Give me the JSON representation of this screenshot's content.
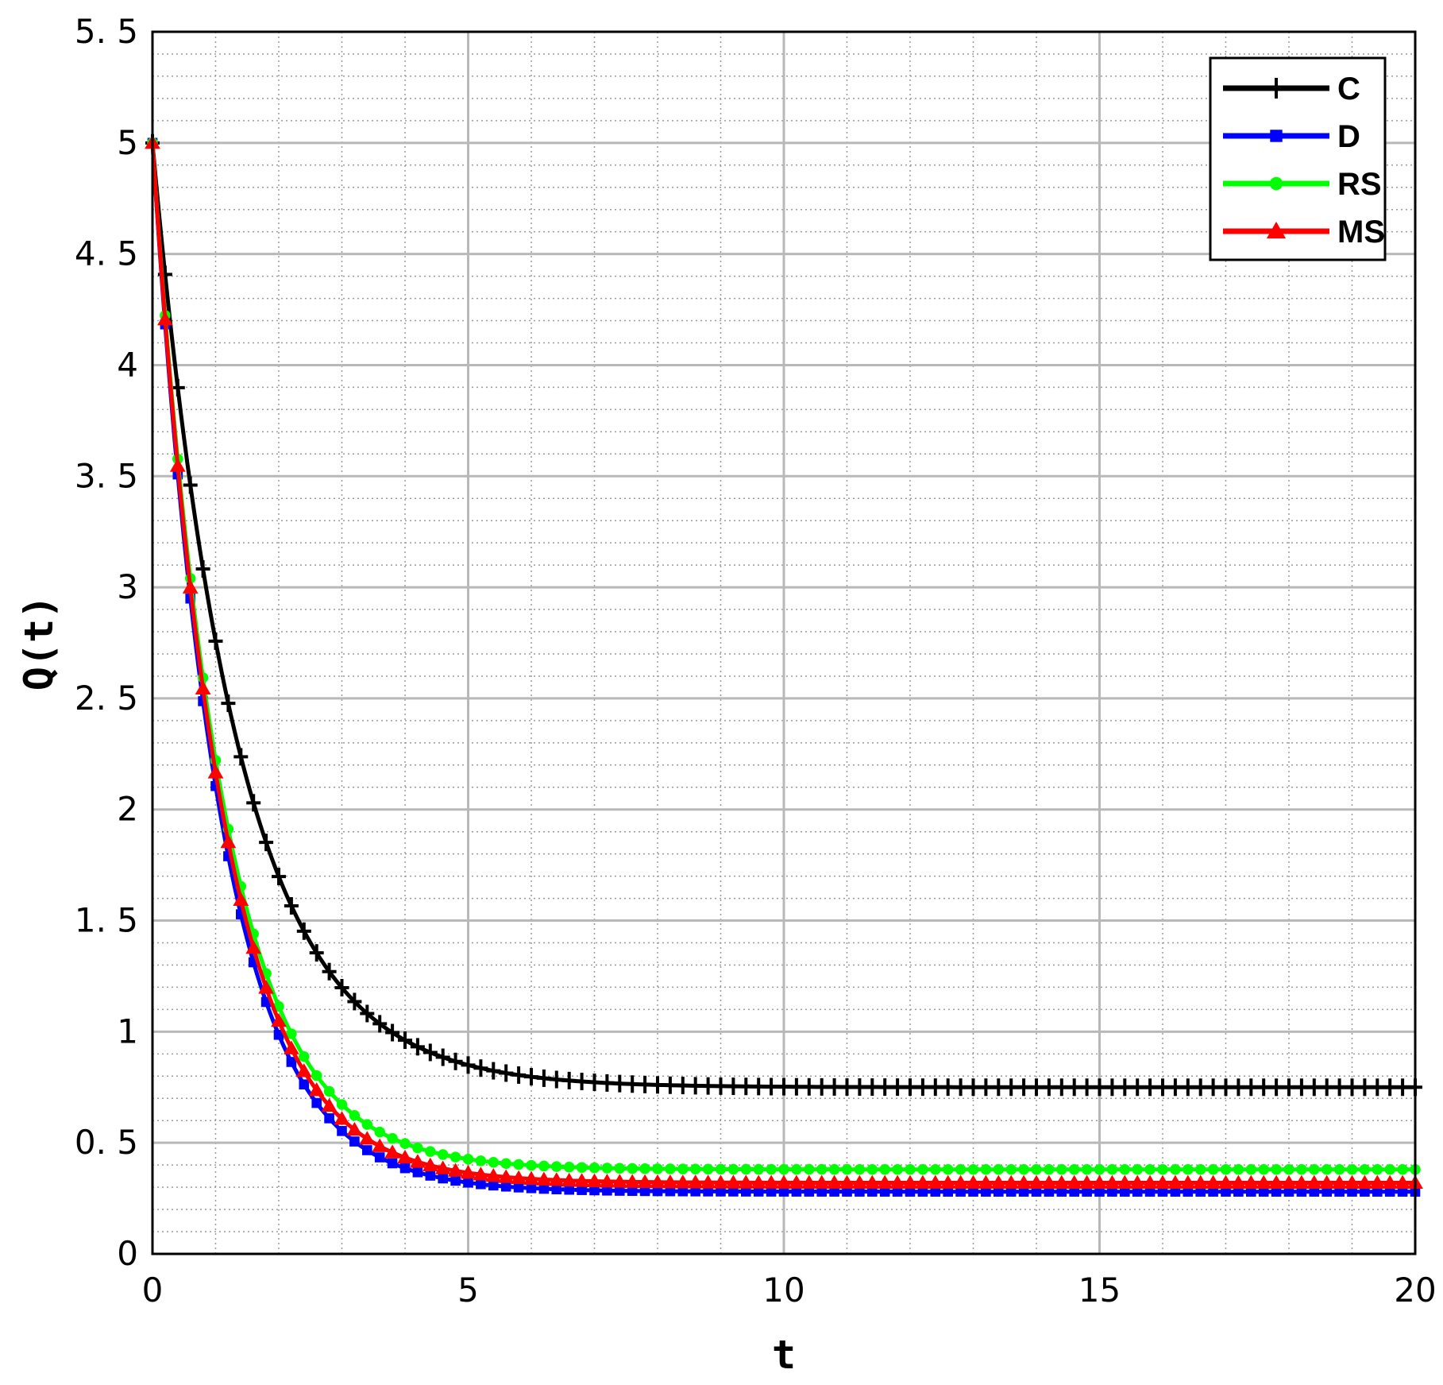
{
  "chart_data": {
    "type": "line",
    "title": "",
    "xlabel": "t",
    "ylabel": "Q(t)",
    "xlim": [
      0,
      20
    ],
    "ylim": [
      0,
      5.5
    ],
    "xticks": [
      0,
      5,
      10,
      15,
      20
    ],
    "yticks": [
      0,
      0.5,
      1,
      1.5,
      2,
      2.5,
      3,
      3.5,
      4,
      4.5,
      5,
      5.5
    ],
    "xtick_labels": [
      "0",
      "5",
      "10",
      "15",
      "20"
    ],
    "ytick_labels": [
      "0",
      "0. 5",
      "1",
      "1. 5",
      "2",
      "2. 5",
      "3",
      "3. 5",
      "4",
      "4. 5",
      "5",
      "5. 5"
    ],
    "grid": true,
    "minor_grid": true,
    "legend_position": "top-right",
    "marker_step": 0.2,
    "series": [
      {
        "name": "C",
        "color": "#000000",
        "marker": "plus",
        "model": {
          "q0": 5,
          "qinf": 0.75,
          "k": 0.75
        }
      },
      {
        "name": "D",
        "color": "#0000ff",
        "marker": "square",
        "model": {
          "q0": 5,
          "qinf": 0.28,
          "k": 0.95
        }
      },
      {
        "name": "RS",
        "color": "#00ff00",
        "marker": "circle",
        "model": {
          "q0": 5,
          "qinf": 0.38,
          "k": 0.92
        }
      },
      {
        "name": "MS",
        "color": "#ff0000",
        "marker": "triangle",
        "model": {
          "q0": 5,
          "qinf": 0.32,
          "k": 0.93
        }
      }
    ]
  }
}
